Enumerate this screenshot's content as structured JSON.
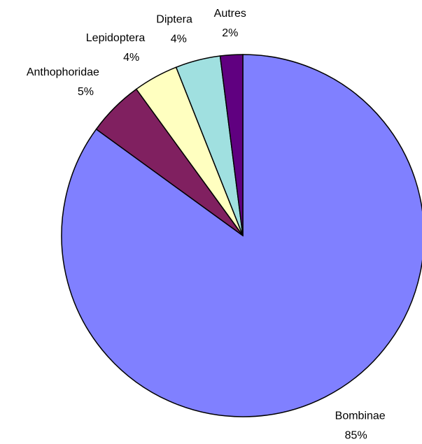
{
  "chart_data": {
    "type": "pie",
    "categories": [
      "Bombinae",
      "Anthophoridae",
      "Lepidoptera",
      "Diptera",
      "Autres"
    ],
    "values": [
      85,
      5,
      4,
      4,
      2
    ],
    "value_labels": [
      "85%",
      "5%",
      "4%",
      "4%",
      "2%"
    ],
    "colors": [
      "#8080ff",
      "#802060",
      "#ffffc0",
      "#a0e0e0",
      "#600080"
    ]
  }
}
